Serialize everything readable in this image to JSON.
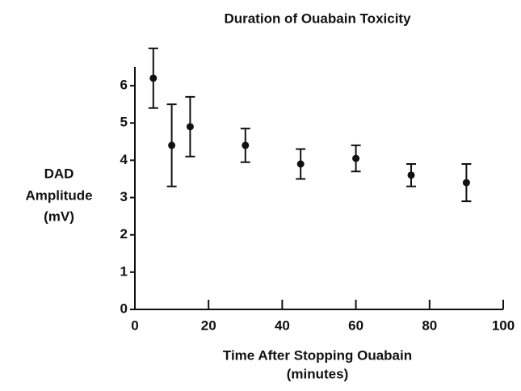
{
  "chart_data": {
    "type": "scatter",
    "title": "Duration of Ouabain Toxicity",
    "x_label": [
      "Time After Stopping Ouabain",
      "(minutes)"
    ],
    "y_label": [
      "DAD",
      "Amplitude",
      "(mV)"
    ],
    "x": [
      5,
      10,
      15,
      30,
      45,
      60,
      75,
      90
    ],
    "values": [
      6.2,
      4.4,
      4.9,
      4.4,
      3.9,
      4.05,
      3.6,
      3.4
    ],
    "errors": [
      0.8,
      1.1,
      0.8,
      0.45,
      0.4,
      0.35,
      0.3,
      0.5
    ],
    "color": "#111111",
    "xlim": [
      0,
      100
    ],
    "xticks": [
      0,
      20,
      40,
      60,
      80,
      100
    ],
    "ylim": [
      0,
      6.5
    ],
    "yticks": [
      0,
      1,
      2,
      3,
      4,
      5,
      6
    ],
    "grid": false
  }
}
